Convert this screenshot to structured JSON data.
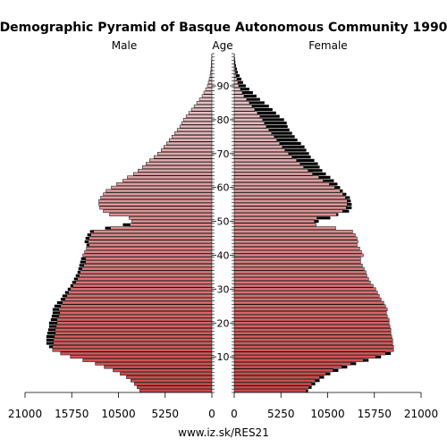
{
  "chart_data": {
    "type": "bar",
    "title": "Demographic Pyramid of Basque Autonomous Community 1990",
    "left_label": "Male",
    "center_label": "Age",
    "right_label": "Female",
    "source": "www.iz.sk/RES21",
    "x_ticks_left": [
      "21000",
      "15750",
      "10500",
      "5250",
      "0"
    ],
    "x_ticks_right": [
      "0",
      "5250",
      "10500",
      "15750",
      "21000"
    ],
    "x_tick_values": [
      0,
      5250,
      10500,
      15750,
      21000
    ],
    "xlim": [
      0,
      21000
    ],
    "age_ticks": [
      10,
      20,
      30,
      40,
      50,
      60,
      70,
      80,
      90
    ],
    "ages_from": 0,
    "ages_to": 99,
    "colors": {
      "male_young": "#d04646",
      "male_old": "#e8c8cc",
      "female_young": "#d04646",
      "female_old": "#e8c8cc",
      "excess": "#000000",
      "outline": "#000000"
    },
    "male": [
      8100,
      8400,
      8700,
      9100,
      9600,
      10300,
      11100,
      12100,
      13100,
      14500,
      15900,
      17000,
      17900,
      18300,
      18600,
      18600,
      18600,
      18500,
      18400,
      18300,
      18300,
      18100,
      18000,
      17900,
      17900,
      17700,
      17400,
      17000,
      16800,
      16500,
      16200,
      15900,
      15700,
      15500,
      15300,
      15100,
      15000,
      14900,
      14800,
      14700,
      14500,
      14300,
      14100,
      14100,
      14300,
      14200,
      14000,
      13700,
      12000,
      10000,
      9000,
      9300,
      11500,
      12200,
      12600,
      12700,
      12700,
      12500,
      12200,
      11900,
      11300,
      10700,
      10000,
      9500,
      8800,
      8300,
      7800,
      7400,
      7000,
      6500,
      6100,
      5700,
      5400,
      5100,
      4800,
      4500,
      4200,
      3900,
      3600,
      3400,
      3200,
      2900,
      2600,
      2300,
      2000,
      1700,
      1400,
      1100,
      900,
      700,
      500,
      400,
      300,
      200,
      150,
      100,
      70,
      50,
      30,
      20
    ],
    "female": [
      8300,
      8700,
      9100,
      9600,
      10100,
      10800,
      11700,
      12700,
      13700,
      15100,
      16500,
      17600,
      17900,
      17900,
      17800,
      17800,
      17700,
      17600,
      17600,
      17500,
      17400,
      17400,
      17200,
      17100,
      17200,
      17000,
      16800,
      16500,
      16300,
      16100,
      15900,
      15600,
      15300,
      15100,
      14900,
      14800,
      14600,
      14400,
      14200,
      14200,
      14500,
      14300,
      14100,
      13800,
      13900,
      13800,
      13600,
      13300,
      11400,
      9200,
      9500,
      10800,
      11700,
      12900,
      13200,
      13200,
      13100,
      13000,
      12600,
      12200,
      11900,
      11600,
      11200,
      10800,
      10300,
      9900,
      9600,
      9400,
      9000,
      8600,
      8400,
      8100,
      7900,
      7500,
      7100,
      6800,
      6500,
      6200,
      6000,
      5900,
      5600,
      5100,
      4700,
      4300,
      3900,
      3400,
      2900,
      2500,
      2100,
      1700,
      1300,
      1000,
      800,
      600,
      400,
      300,
      200,
      120,
      80,
      40
    ]
  }
}
